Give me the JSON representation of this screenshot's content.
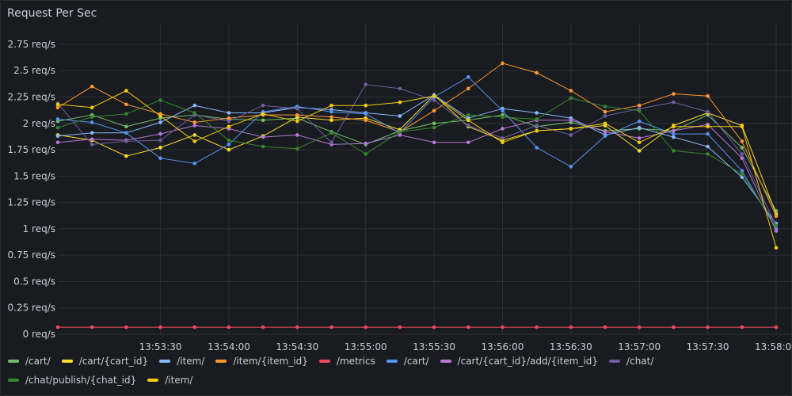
{
  "panel": {
    "title": "Request Per Sec"
  },
  "chart_data": {
    "type": "line",
    "title": "Request Per Sec",
    "xlabel": "",
    "ylabel": "",
    "ylim": [
      0,
      2.87
    ],
    "yticks": [
      0,
      0.25,
      0.5,
      0.75,
      1,
      1.25,
      1.5,
      1.75,
      2,
      2.25,
      2.5,
      2.75
    ],
    "ytick_labels": [
      "0 req/s",
      "0.25 req/s",
      "0.5 req/s",
      "0.75 req/s",
      "1 req/s",
      "1.25 req/s",
      "1.5 req/s",
      "1.75 req/s",
      "2 req/s",
      "2.25 req/s",
      "2.5 req/s",
      "2.75 req/s"
    ],
    "x": [
      "13:52:45",
      "13:53:00",
      "13:53:15",
      "13:53:30",
      "13:53:45",
      "13:54:00",
      "13:54:15",
      "13:54:30",
      "13:54:45",
      "13:55:00",
      "13:55:15",
      "13:55:30",
      "13:55:45",
      "13:56:00",
      "13:56:15",
      "13:56:30",
      "13:56:45",
      "13:57:00",
      "13:57:15",
      "13:57:30",
      "13:57:45",
      "13:58:00"
    ],
    "xticks": [
      "13:53:30",
      "13:54:00",
      "13:54:30",
      "13:55:00",
      "13:55:30",
      "13:56:00",
      "13:56:30",
      "13:57:00",
      "13:57:30",
      "13:58:00"
    ],
    "grid": true,
    "legend_position": "bottom",
    "series": [
      {
        "name": "/cart/",
        "color": "#73bf69",
        "values": [
          2.02,
          2.08,
          1.97,
          2.05,
          2.08,
          2.04,
          2.03,
          2.05,
          1.92,
          1.8,
          1.93,
          2.0,
          2.03,
          2.08,
          1.97,
          2.01,
          1.93,
          1.95,
          1.93,
          2.08,
          1.77,
          1.17
        ]
      },
      {
        "name": "/cart/{cart_id}",
        "color": "#fade2a",
        "values": [
          1.89,
          1.84,
          1.69,
          1.77,
          1.89,
          1.75,
          1.88,
          2.06,
          2.03,
          2.05,
          1.94,
          2.27,
          1.97,
          1.84,
          1.93,
          1.95,
          1.98,
          1.74,
          1.98,
          2.1,
          1.98,
          1.14
        ]
      },
      {
        "name": "/item/",
        "color": "#8ab8ff",
        "values": [
          1.88,
          1.91,
          1.91,
          2.01,
          2.17,
          2.1,
          2.1,
          2.15,
          2.13,
          2.1,
          2.07,
          2.27,
          2.05,
          2.14,
          2.1,
          2.05,
          1.89,
          1.96,
          1.87,
          1.78,
          1.49,
          1.05
        ]
      },
      {
        "name": "/item/{item_id}",
        "color": "#ff9830",
        "values": [
          2.15,
          2.35,
          2.18,
          2.09,
          2.01,
          2.05,
          2.08,
          2.08,
          2.06,
          2.03,
          1.92,
          2.12,
          2.33,
          2.57,
          2.48,
          2.31,
          2.11,
          2.17,
          2.28,
          2.26,
          1.83,
          1.12
        ]
      },
      {
        "name": "/metrics",
        "color": "#f2495c",
        "values": [
          0.067,
          0.067,
          0.067,
          0.067,
          0.067,
          0.067,
          0.067,
          0.067,
          0.067,
          0.067,
          0.067,
          0.067,
          0.067,
          0.067,
          0.067,
          0.067,
          0.067,
          0.067,
          0.067,
          0.067,
          0.067,
          0.067
        ]
      },
      {
        "name": "/cart/",
        "color": "#5794f2",
        "values": [
          2.04,
          2.01,
          1.91,
          1.67,
          1.62,
          1.8,
          2.11,
          2.16,
          2.11,
          2.09,
          1.91,
          2.25,
          2.44,
          2.12,
          1.77,
          1.59,
          1.88,
          2.02,
          1.9,
          1.9,
          1.55,
          1.0
        ]
      },
      {
        "name": "/cart/{cart_id}/add/{item_id}",
        "color": "#b877d9",
        "values": [
          1.82,
          1.85,
          1.84,
          1.9,
          1.98,
          1.95,
          1.87,
          1.89,
          1.8,
          1.81,
          1.89,
          1.82,
          1.82,
          1.95,
          2.03,
          2.03,
          1.92,
          1.86,
          1.93,
          1.99,
          1.67,
          0.98
        ]
      },
      {
        "name": "/chat/",
        "color": "#705da0",
        "values": [
          2.19,
          1.8,
          1.83,
          1.84,
          2.08,
          2.02,
          2.17,
          2.14,
          1.82,
          2.37,
          2.33,
          2.22,
          1.98,
          1.86,
          1.98,
          1.89,
          2.07,
          2.14,
          2.2,
          2.11,
          1.71,
          1.03
        ]
      },
      {
        "name": "/chat/publish/{chat_id}",
        "color": "#37872d",
        "values": [
          1.96,
          2.06,
          2.09,
          2.22,
          2.1,
          1.84,
          1.78,
          1.76,
          1.91,
          1.71,
          1.92,
          1.96,
          2.08,
          2.06,
          2.04,
          2.24,
          2.16,
          2.12,
          1.74,
          1.71,
          1.52,
          1.03
        ]
      },
      {
        "name": "/item/",
        "color": "#f2cc0c",
        "values": [
          2.18,
          2.15,
          2.31,
          2.07,
          1.83,
          1.97,
          2.09,
          2.02,
          2.17,
          2.17,
          2.2,
          2.26,
          2.03,
          1.82,
          1.93,
          1.95,
          2.0,
          1.82,
          1.97,
          1.97,
          1.97,
          0.82
        ]
      }
    ]
  }
}
